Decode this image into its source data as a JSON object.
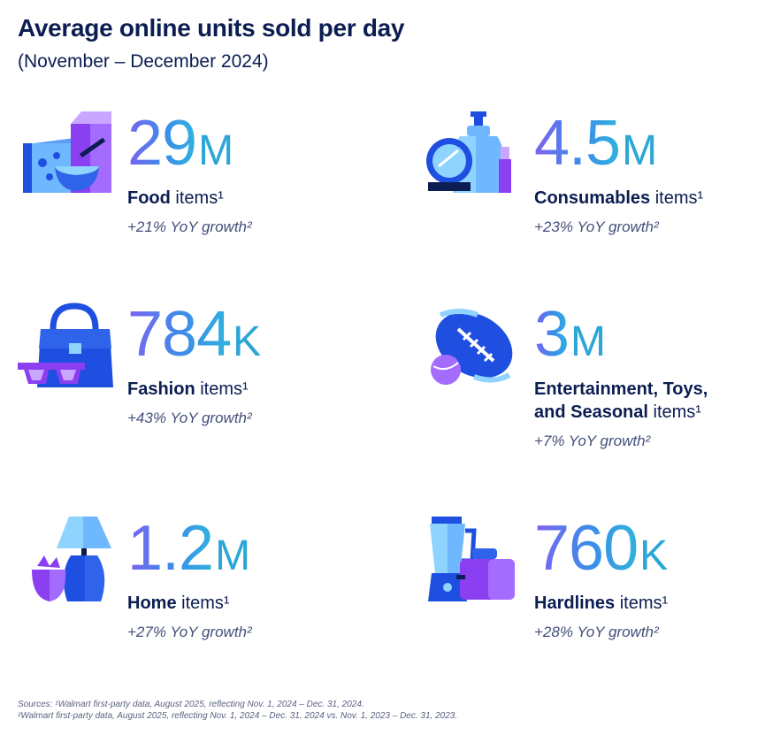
{
  "header": {
    "title": "Average online units sold per day",
    "subtitle": "(November – December 2024)"
  },
  "stats": [
    {
      "value": "29",
      "unit": "M",
      "category": "Food",
      "category_line2": "",
      "suffix": " items¹",
      "growth": "+21% YoY growth²",
      "icon": "groceries-icon"
    },
    {
      "value": "4.5",
      "unit": "M",
      "category": "Consumables",
      "category_line2": "",
      "suffix": " items¹",
      "growth": "+23% YoY growth²",
      "icon": "cosmetics-icon"
    },
    {
      "value": "784",
      "unit": "K",
      "category": "Fashion",
      "category_line2": "",
      "suffix": " items¹",
      "growth": "+43% YoY growth²",
      "icon": "handbag-icon"
    },
    {
      "value": "3",
      "unit": "M",
      "category": "Entertainment, Toys,",
      "category_line2": "and Seasonal",
      "suffix": " items¹",
      "growth": "+7% YoY growth²",
      "icon": "football-icon"
    },
    {
      "value": "1.2",
      "unit": "M",
      "category": "Home",
      "category_line2": "",
      "suffix": " items¹",
      "growth": "+27% YoY growth²",
      "icon": "lamp-icon"
    },
    {
      "value": "760",
      "unit": "K",
      "category": "Hardlines",
      "category_line2": "",
      "suffix": " items¹",
      "growth": "+28% YoY growth²",
      "icon": "blender-icon"
    }
  ],
  "footer": {
    "source_1": "Sources: ¹Walmart first-party data, August 2025, reflecting Nov. 1, 2024 – Dec. 31, 2024.",
    "source_2": "²Walmart first-party data, August 2025, reflecting Nov. 1, 2024 – Dec. 31, 2024 vs. Nov. 1, 2023 – Dec. 31, 2023."
  },
  "colors": {
    "navy": "#0b1d51",
    "blue": "#1e4fe0",
    "purple": "#8a3ff0",
    "light_blue": "#8fd3ff",
    "teal": "#2fb3dd"
  }
}
